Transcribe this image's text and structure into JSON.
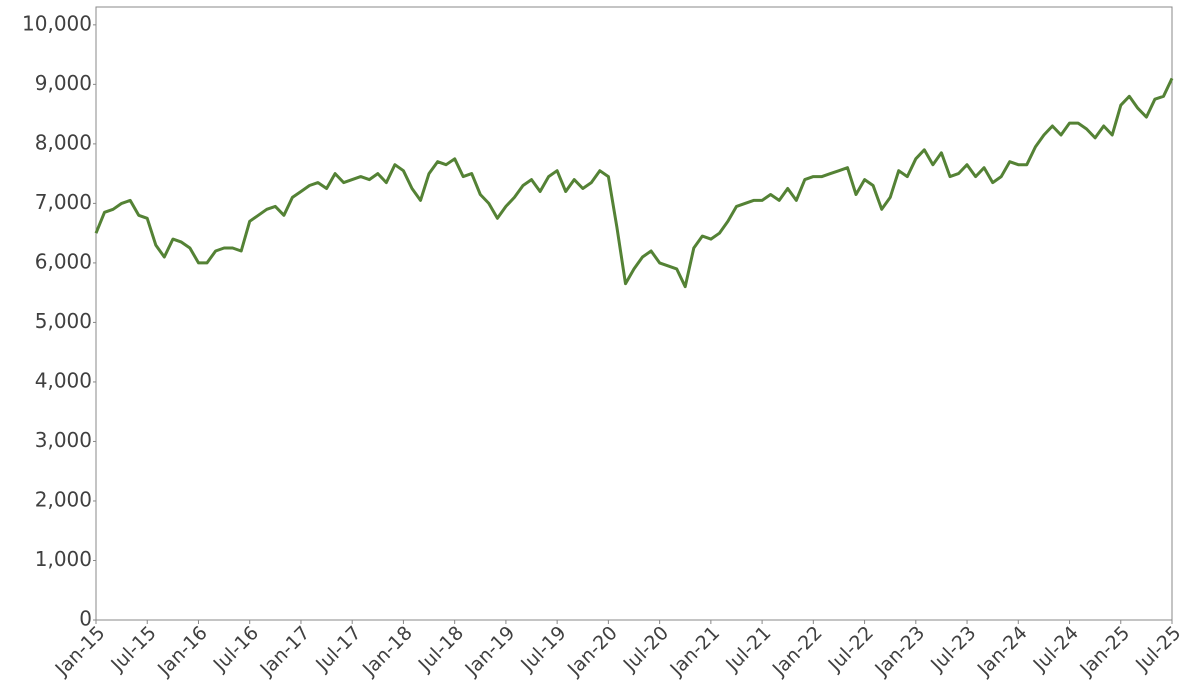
{
  "chart_data": {
    "type": "line",
    "x": [
      "2015-01",
      "2015-02",
      "2015-03",
      "2015-04",
      "2015-05",
      "2015-06",
      "2015-07",
      "2015-08",
      "2015-09",
      "2015-10",
      "2015-11",
      "2015-12",
      "2016-01",
      "2016-02",
      "2016-03",
      "2016-04",
      "2016-05",
      "2016-06",
      "2016-07",
      "2016-08",
      "2016-09",
      "2016-10",
      "2016-11",
      "2016-12",
      "2017-01",
      "2017-02",
      "2017-03",
      "2017-04",
      "2017-05",
      "2017-06",
      "2017-07",
      "2017-08",
      "2017-09",
      "2017-10",
      "2017-11",
      "2017-12",
      "2018-01",
      "2018-02",
      "2018-03",
      "2018-04",
      "2018-05",
      "2018-06",
      "2018-07",
      "2018-08",
      "2018-09",
      "2018-10",
      "2018-11",
      "2018-12",
      "2019-01",
      "2019-02",
      "2019-03",
      "2019-04",
      "2019-05",
      "2019-06",
      "2019-07",
      "2019-08",
      "2019-09",
      "2019-10",
      "2019-11",
      "2019-12",
      "2020-01",
      "2020-02",
      "2020-03",
      "2020-04",
      "2020-05",
      "2020-06",
      "2020-07",
      "2020-08",
      "2020-09",
      "2020-10",
      "2020-11",
      "2020-12",
      "2021-01",
      "2021-02",
      "2021-03",
      "2021-04",
      "2021-05",
      "2021-06",
      "2021-07",
      "2021-08",
      "2021-09",
      "2021-10",
      "2021-11",
      "2021-12",
      "2022-01",
      "2022-02",
      "2022-03",
      "2022-04",
      "2022-05",
      "2022-06",
      "2022-07",
      "2022-08",
      "2022-09",
      "2022-10",
      "2022-11",
      "2022-12",
      "2023-01",
      "2023-02",
      "2023-03",
      "2023-04",
      "2023-05",
      "2023-06",
      "2023-07",
      "2023-08",
      "2023-09",
      "2023-10",
      "2023-11",
      "2023-12",
      "2024-01",
      "2024-02",
      "2024-03",
      "2024-04",
      "2024-05",
      "2024-06",
      "2024-07",
      "2024-08",
      "2024-09",
      "2024-10",
      "2024-11",
      "2024-12",
      "2025-01",
      "2025-02",
      "2025-03",
      "2025-04",
      "2025-05",
      "2025-06",
      "2025-07"
    ],
    "series": [
      {
        "color": "#548235",
        "values": [
          6500,
          6850,
          6900,
          7000,
          7050,
          6800,
          6750,
          6300,
          6100,
          6400,
          6350,
          6250,
          6000,
          6000,
          6200,
          6250,
          6250,
          6200,
          6700,
          6800,
          6900,
          6950,
          6800,
          7100,
          7200,
          7300,
          7350,
          7250,
          7500,
          7350,
          7400,
          7450,
          7400,
          7500,
          7350,
          7650,
          7550,
          7250,
          7050,
          7500,
          7700,
          7650,
          7750,
          7450,
          7500,
          7150,
          7000,
          6750,
          6950,
          7100,
          7300,
          7400,
          7200,
          7450,
          7550,
          7200,
          7400,
          7250,
          7350,
          7550,
          7450,
          6600,
          5650,
          5900,
          6100,
          6200,
          6000,
          5950,
          5900,
          5600,
          6250,
          6450,
          6400,
          6500,
          6700,
          6950,
          7000,
          7050,
          7050,
          7150,
          7050,
          7250,
          7050,
          7400,
          7450,
          7450,
          7500,
          7550,
          7600,
          7150,
          7400,
          7300,
          6900,
          7100,
          7550,
          7450,
          7750,
          7900,
          7650,
          7850,
          7450,
          7500,
          7650,
          7450,
          7600,
          7350,
          7450,
          7700,
          7650,
          7650,
          7950,
          8150,
          8300,
          8150,
          8350,
          8350,
          8250,
          8100,
          8300,
          8150,
          8650,
          8800,
          8600,
          8450,
          8750,
          8800,
          9100
        ]
      }
    ],
    "xlim": [
      "2015-01",
      "2025-07"
    ],
    "xticks": [
      {
        "value": "2015-01",
        "label": "Jan-15"
      },
      {
        "value": "2015-07",
        "label": "Jul-15"
      },
      {
        "value": "2016-01",
        "label": "Jan-16"
      },
      {
        "value": "2016-07",
        "label": "Jul-16"
      },
      {
        "value": "2017-01",
        "label": "Jan-17"
      },
      {
        "value": "2017-07",
        "label": "Jul-17"
      },
      {
        "value": "2018-01",
        "label": "Jan-18"
      },
      {
        "value": "2018-07",
        "label": "Jul-18"
      },
      {
        "value": "2019-01",
        "label": "Jan-19"
      },
      {
        "value": "2019-07",
        "label": "Jul-19"
      },
      {
        "value": "2020-01",
        "label": "Jan-20"
      },
      {
        "value": "2020-07",
        "label": "Jul-20"
      },
      {
        "value": "2021-01",
        "label": "Jan-21"
      },
      {
        "value": "2021-07",
        "label": "Jul-21"
      },
      {
        "value": "2022-01",
        "label": "Jan-22"
      },
      {
        "value": "2022-07",
        "label": "Jul-22"
      },
      {
        "value": "2023-01",
        "label": "Jan-23"
      },
      {
        "value": "2023-07",
        "label": "Jul-23"
      },
      {
        "value": "2024-01",
        "label": "Jan-24"
      },
      {
        "value": "2024-07",
        "label": "Jul-24"
      },
      {
        "value": "2025-01",
        "label": "Jan-25"
      },
      {
        "value": "2025-07",
        "label": "Jul-25"
      }
    ],
    "ylim": [
      0,
      10300
    ],
    "yticks": [
      0,
      {
        "value": 1000,
        "label": "1,000"
      },
      {
        "value": 2000,
        "label": "2,000"
      },
      {
        "value": 3000,
        "label": "3,000"
      },
      {
        "value": 4000,
        "label": "4,000"
      },
      {
        "value": 5000,
        "label": "5,000"
      },
      {
        "value": 6000,
        "label": "6,000"
      },
      {
        "value": 7000,
        "label": "7,000"
      },
      {
        "value": 8000,
        "label": "8,000"
      },
      {
        "value": 9000,
        "label": "9,000"
      },
      {
        "value": 10000,
        "label": "10,000"
      }
    ],
    "grid": false
  }
}
